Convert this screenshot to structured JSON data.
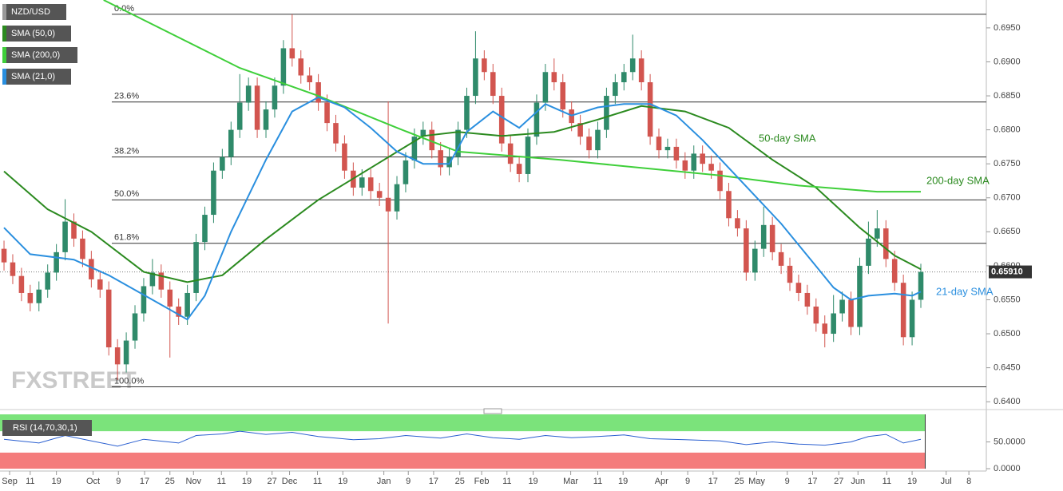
{
  "chart_data": [
    {
      "type": "candlestick",
      "name": "NZD/USD",
      "up_color": "#2f8a6a",
      "down_color": "#d2554f",
      "xlim": [
        -0.46,
        112.5
      ],
      "ylim": [
        0.6392,
        0.6991
      ],
      "xticks": [
        {
          "value": 0.64,
          "label": "Sep"
        },
        {
          "value": 3.0,
          "label": "11"
        },
        {
          "value": 6.0,
          "label": "19"
        },
        {
          "value": 10.2,
          "label": "Oct"
        },
        {
          "value": 13.1,
          "label": "9"
        },
        {
          "value": 16.1,
          "label": "17"
        },
        {
          "value": 19.0,
          "label": "25"
        },
        {
          "value": 21.7,
          "label": "Nov"
        },
        {
          "value": 24.9,
          "label": "11"
        },
        {
          "value": 27.8,
          "label": "19"
        },
        {
          "value": 30.7,
          "label": "27"
        },
        {
          "value": 32.7,
          "label": "Dec"
        },
        {
          "value": 35.9,
          "label": "11"
        },
        {
          "value": 38.8,
          "label": "19"
        },
        {
          "value": 43.5,
          "label": "Jan"
        },
        {
          "value": 46.3,
          "label": "9"
        },
        {
          "value": 49.2,
          "label": "17"
        },
        {
          "value": 52.2,
          "label": "25"
        },
        {
          "value": 54.7,
          "label": "Feb"
        },
        {
          "value": 57.6,
          "label": "11"
        },
        {
          "value": 60.6,
          "label": "19"
        },
        {
          "value": 64.9,
          "label": "Mar"
        },
        {
          "value": 68.0,
          "label": "11"
        },
        {
          "value": 70.9,
          "label": "19"
        },
        {
          "value": 75.3,
          "label": "Apr"
        },
        {
          "value": 78.3,
          "label": "9"
        },
        {
          "value": 81.2,
          "label": "17"
        },
        {
          "value": 84.2,
          "label": "25"
        },
        {
          "value": 86.2,
          "label": "May"
        },
        {
          "value": 89.7,
          "label": "9"
        },
        {
          "value": 92.6,
          "label": "17"
        },
        {
          "value": 95.6,
          "label": "27"
        },
        {
          "value": 97.8,
          "label": "Jun"
        },
        {
          "value": 101.1,
          "label": "11"
        },
        {
          "value": 104.0,
          "label": "19"
        },
        {
          "value": 107.9,
          "label": "Jul"
        },
        {
          "value": 110.5,
          "label": "8"
        }
      ],
      "yticks": [
        {
          "value": 0.695,
          "label": "0.6950"
        },
        {
          "value": 0.69,
          "label": "0.6900"
        },
        {
          "value": 0.685,
          "label": "0.6850"
        },
        {
          "value": 0.68,
          "label": "0.6800"
        },
        {
          "value": 0.675,
          "label": "0.6750"
        },
        {
          "value": 0.67,
          "label": "0.6700"
        },
        {
          "value": 0.665,
          "label": "0.6650"
        },
        {
          "value": 0.66,
          "label": "0.6600"
        },
        {
          "value": 0.655,
          "label": "0.6550"
        },
        {
          "value": 0.65,
          "label": "0.6500"
        },
        {
          "value": 0.645,
          "label": "0.6450"
        },
        {
          "value": 0.64,
          "label": "0.6400"
        }
      ],
      "last_price": {
        "value": 0.6591,
        "label": "0.65910"
      },
      "levels": [
        {
          "value": 0.697,
          "label": "0.0%"
        },
        {
          "value": 0.6841,
          "label": "23.6%"
        },
        {
          "value": 0.676,
          "label": "38.2%"
        },
        {
          "value": 0.6697,
          "label": "50.0%"
        },
        {
          "value": 0.6633,
          "label": "61.8%"
        },
        {
          "value": 0.6422,
          "label": "100.0%"
        }
      ],
      "annotations": [
        "50-day SMA",
        "200-day SMA",
        "21-day SMA"
      ],
      "watermark": "FXSTREET",
      "candles": [
        [
          0.6625,
          0.6637,
          0.6593,
          0.6605
        ],
        [
          0.6605,
          0.6617,
          0.6573,
          0.6585
        ],
        [
          0.6585,
          0.6597,
          0.6548,
          0.656
        ],
        [
          0.656,
          0.6572,
          0.6533,
          0.6545
        ],
        [
          0.6545,
          0.6577,
          0.6533,
          0.6565
        ],
        [
          0.6565,
          0.6602,
          0.6553,
          0.659
        ],
        [
          0.659,
          0.6632,
          0.6578,
          0.662
        ],
        [
          0.662,
          0.6698,
          0.6608,
          0.6665
        ],
        [
          0.6665,
          0.6677,
          0.6628,
          0.664
        ],
        [
          0.664,
          0.6652,
          0.6598,
          0.661
        ],
        [
          0.661,
          0.6622,
          0.6568,
          0.658
        ],
        [
          0.658,
          0.6592,
          0.6553,
          0.6565
        ],
        [
          0.6565,
          0.6577,
          0.6468,
          0.648
        ],
        [
          0.648,
          0.6492,
          0.6432,
          0.6455
        ],
        [
          0.6455,
          0.6502,
          0.6443,
          0.649
        ],
        [
          0.649,
          0.6542,
          0.6478,
          0.653
        ],
        [
          0.653,
          0.6582,
          0.6518,
          0.657
        ],
        [
          0.657,
          0.661,
          0.6558,
          0.659
        ],
        [
          0.659,
          0.6602,
          0.6553,
          0.6565
        ],
        [
          0.6565,
          0.6577,
          0.6465,
          0.654
        ],
        [
          0.654,
          0.6552,
          0.6513,
          0.6525
        ],
        [
          0.6525,
          0.6572,
          0.6513,
          0.656
        ],
        [
          0.656,
          0.6647,
          0.6548,
          0.6635
        ],
        [
          0.6635,
          0.6687,
          0.6623,
          0.6675
        ],
        [
          0.6675,
          0.6752,
          0.6663,
          0.674
        ],
        [
          0.674,
          0.6772,
          0.6728,
          0.676
        ],
        [
          0.676,
          0.6812,
          0.6748,
          0.68
        ],
        [
          0.68,
          0.6882,
          0.6788,
          0.684
        ],
        [
          0.684,
          0.6877,
          0.6828,
          0.6865
        ],
        [
          0.6865,
          0.6877,
          0.6788,
          0.68
        ],
        [
          0.68,
          0.6842,
          0.6788,
          0.683
        ],
        [
          0.683,
          0.6877,
          0.6818,
          0.6865
        ],
        [
          0.6865,
          0.6932,
          0.6853,
          0.692
        ],
        [
          0.692,
          0.697,
          0.6893,
          0.6905
        ],
        [
          0.6905,
          0.6917,
          0.6868,
          0.688
        ],
        [
          0.688,
          0.6892,
          0.6858,
          0.687
        ],
        [
          0.687,
          0.6882,
          0.6828,
          0.684
        ],
        [
          0.684,
          0.6852,
          0.6798,
          0.681
        ],
        [
          0.681,
          0.6822,
          0.6768,
          0.678
        ],
        [
          0.678,
          0.6792,
          0.6728,
          0.674
        ],
        [
          0.674,
          0.6752,
          0.6703,
          0.6715
        ],
        [
          0.6715,
          0.6742,
          0.6703,
          0.673
        ],
        [
          0.673,
          0.6742,
          0.6698,
          0.671
        ],
        [
          0.671,
          0.6722,
          0.6688,
          0.67
        ],
        [
          0.67,
          0.6842,
          0.6515,
          0.668
        ],
        [
          0.668,
          0.6732,
          0.6668,
          0.672
        ],
        [
          0.672,
          0.6767,
          0.6708,
          0.6755
        ],
        [
          0.6755,
          0.6802,
          0.6743,
          0.679
        ],
        [
          0.679,
          0.6812,
          0.6778,
          0.68
        ],
        [
          0.68,
          0.6812,
          0.6758,
          0.677
        ],
        [
          0.677,
          0.6782,
          0.6733,
          0.6745
        ],
        [
          0.6745,
          0.6772,
          0.6733,
          0.676
        ],
        [
          0.676,
          0.6812,
          0.6748,
          0.68
        ],
        [
          0.68,
          0.6862,
          0.6788,
          0.685
        ],
        [
          0.685,
          0.6945,
          0.6838,
          0.6905
        ],
        [
          0.6905,
          0.6917,
          0.6873,
          0.6885
        ],
        [
          0.6885,
          0.6897,
          0.6838,
          0.685
        ],
        [
          0.685,
          0.6862,
          0.6768,
          0.678
        ],
        [
          0.678,
          0.6792,
          0.6738,
          0.675
        ],
        [
          0.675,
          0.6762,
          0.6723,
          0.6735
        ],
        [
          0.6735,
          0.6802,
          0.6723,
          0.679
        ],
        [
          0.679,
          0.6852,
          0.6778,
          0.684
        ],
        [
          0.684,
          0.6897,
          0.6828,
          0.6885
        ],
        [
          0.6885,
          0.6905,
          0.6858,
          0.687
        ],
        [
          0.687,
          0.6882,
          0.6818,
          0.683
        ],
        [
          0.683,
          0.6842,
          0.6798,
          0.681
        ],
        [
          0.681,
          0.6822,
          0.6778,
          0.679
        ],
        [
          0.679,
          0.6802,
          0.6758,
          0.677
        ],
        [
          0.677,
          0.6812,
          0.6758,
          0.68
        ],
        [
          0.68,
          0.6862,
          0.6788,
          0.685
        ],
        [
          0.685,
          0.6882,
          0.6838,
          0.687
        ],
        [
          0.687,
          0.6897,
          0.6858,
          0.6885
        ],
        [
          0.6885,
          0.694,
          0.6873,
          0.6905
        ],
        [
          0.6905,
          0.6917,
          0.6858,
          0.687
        ],
        [
          0.687,
          0.6882,
          0.6778,
          0.679
        ],
        [
          0.679,
          0.6802,
          0.6758,
          0.677
        ],
        [
          0.677,
          0.6787,
          0.6758,
          0.6775
        ],
        [
          0.6775,
          0.6787,
          0.6743,
          0.6755
        ],
        [
          0.6755,
          0.6767,
          0.6728,
          0.674
        ],
        [
          0.674,
          0.6777,
          0.6728,
          0.6765
        ],
        [
          0.6765,
          0.6777,
          0.6738,
          0.675
        ],
        [
          0.675,
          0.6762,
          0.6728,
          0.674
        ],
        [
          0.674,
          0.6752,
          0.6698,
          0.671
        ],
        [
          0.671,
          0.6722,
          0.6658,
          0.667
        ],
        [
          0.667,
          0.6682,
          0.6643,
          0.6655
        ],
        [
          0.6655,
          0.6667,
          0.6578,
          0.659
        ],
        [
          0.659,
          0.6637,
          0.6578,
          0.6625
        ],
        [
          0.6625,
          0.6687,
          0.6613,
          0.666
        ],
        [
          0.666,
          0.6672,
          0.6608,
          0.662
        ],
        [
          0.662,
          0.6632,
          0.6588,
          0.66
        ],
        [
          0.66,
          0.6612,
          0.6563,
          0.6575
        ],
        [
          0.6575,
          0.6587,
          0.6548,
          0.656
        ],
        [
          0.656,
          0.6572,
          0.6528,
          0.654
        ],
        [
          0.654,
          0.6552,
          0.6503,
          0.6515
        ],
        [
          0.6515,
          0.6527,
          0.648,
          0.65
        ],
        [
          0.65,
          0.6557,
          0.6488,
          0.653
        ],
        [
          0.653,
          0.6562,
          0.6518,
          0.655
        ],
        [
          0.655,
          0.6562,
          0.6498,
          0.651
        ],
        [
          0.651,
          0.6612,
          0.6498,
          0.66
        ],
        [
          0.66,
          0.6665,
          0.6588,
          0.664
        ],
        [
          0.664,
          0.6682,
          0.6628,
          0.6655
        ],
        [
          0.6655,
          0.6667,
          0.6598,
          0.661
        ],
        [
          0.661,
          0.6622,
          0.6563,
          0.6575
        ],
        [
          0.6575,
          0.6587,
          0.6483,
          0.6495
        ],
        [
          0.6495,
          0.6562,
          0.6483,
          0.655
        ],
        [
          0.655,
          0.6603,
          0.6538,
          0.6591
        ]
      ],
      "series": [
        {
          "name": "SMA (50,0)",
          "color": "#2b8a1f",
          "x": [
            0,
            5,
            10,
            16,
            21,
            25,
            30,
            36,
            42,
            48,
            52,
            57,
            63,
            68,
            73,
            78,
            83,
            88,
            93,
            98,
            102,
            105
          ],
          "values": [
            0.6739,
            0.6683,
            0.665,
            0.6591,
            0.6576,
            0.6586,
            0.6639,
            0.6697,
            0.6744,
            0.6791,
            0.6797,
            0.6791,
            0.6797,
            0.6815,
            0.6835,
            0.6827,
            0.6803,
            0.6756,
            0.6715,
            0.6656,
            0.6615,
            0.6595
          ]
        },
        {
          "name": "SMA (200,0)",
          "color": "#3fcf3a",
          "x": [
            11.4,
            27,
            36,
            45,
            52,
            63.6,
            73,
            82,
            91,
            100,
            105
          ],
          "values": [
            0.6991,
            0.6891,
            0.685,
            0.6803,
            0.6768,
            0.6756,
            0.6744,
            0.6733,
            0.6718,
            0.6709,
            0.6709
          ]
        },
        {
          "name": "SMA (21,0)",
          "color": "#2a8fdf",
          "x": [
            0,
            3,
            8,
            12,
            17,
            21,
            23,
            26,
            30,
            33,
            36,
            39,
            42,
            45,
            48,
            51,
            53,
            56,
            59,
            62,
            65,
            68,
            71,
            74,
            77,
            80,
            83,
            86,
            89,
            92,
            95,
            97,
            99,
            102,
            104,
            105
          ],
          "values": [
            0.6656,
            0.6617,
            0.6609,
            0.6586,
            0.655,
            0.6521,
            0.6556,
            0.665,
            0.6756,
            0.6827,
            0.6848,
            0.6833,
            0.6803,
            0.6768,
            0.675,
            0.675,
            0.6797,
            0.6827,
            0.6803,
            0.6838,
            0.6821,
            0.6833,
            0.6838,
            0.6838,
            0.6821,
            0.6785,
            0.6744,
            0.6703,
            0.6662,
            0.6615,
            0.6568,
            0.655,
            0.6556,
            0.6559,
            0.6556,
            0.6562
          ]
        }
      ]
    },
    {
      "type": "rsi",
      "name": "RSI (14,70,30,1)",
      "upper": 70,
      "lower": 30,
      "ylim": [
        -4.4,
        101.5
      ],
      "yticks": [
        {
          "value": 50,
          "label": "50.0000"
        },
        {
          "value": 0,
          "label": "0.0000"
        }
      ],
      "color": "#2a5fd0",
      "x": [
        0,
        4,
        7,
        10,
        13,
        16,
        20,
        22,
        25,
        27,
        30,
        33,
        36,
        40,
        43,
        46,
        50,
        53,
        56,
        59,
        62,
        65,
        68,
        71,
        74,
        78,
        82,
        85,
        88,
        91,
        94,
        97,
        99,
        101,
        103,
        105
      ],
      "values": [
        55,
        48,
        62,
        52,
        42,
        55,
        48,
        62,
        65,
        70,
        64,
        68,
        60,
        54,
        56,
        62,
        57,
        65,
        58,
        55,
        62,
        58,
        60,
        63,
        56,
        54,
        52,
        45,
        50,
        46,
        44,
        50,
        60,
        64,
        48,
        55
      ]
    }
  ]
}
